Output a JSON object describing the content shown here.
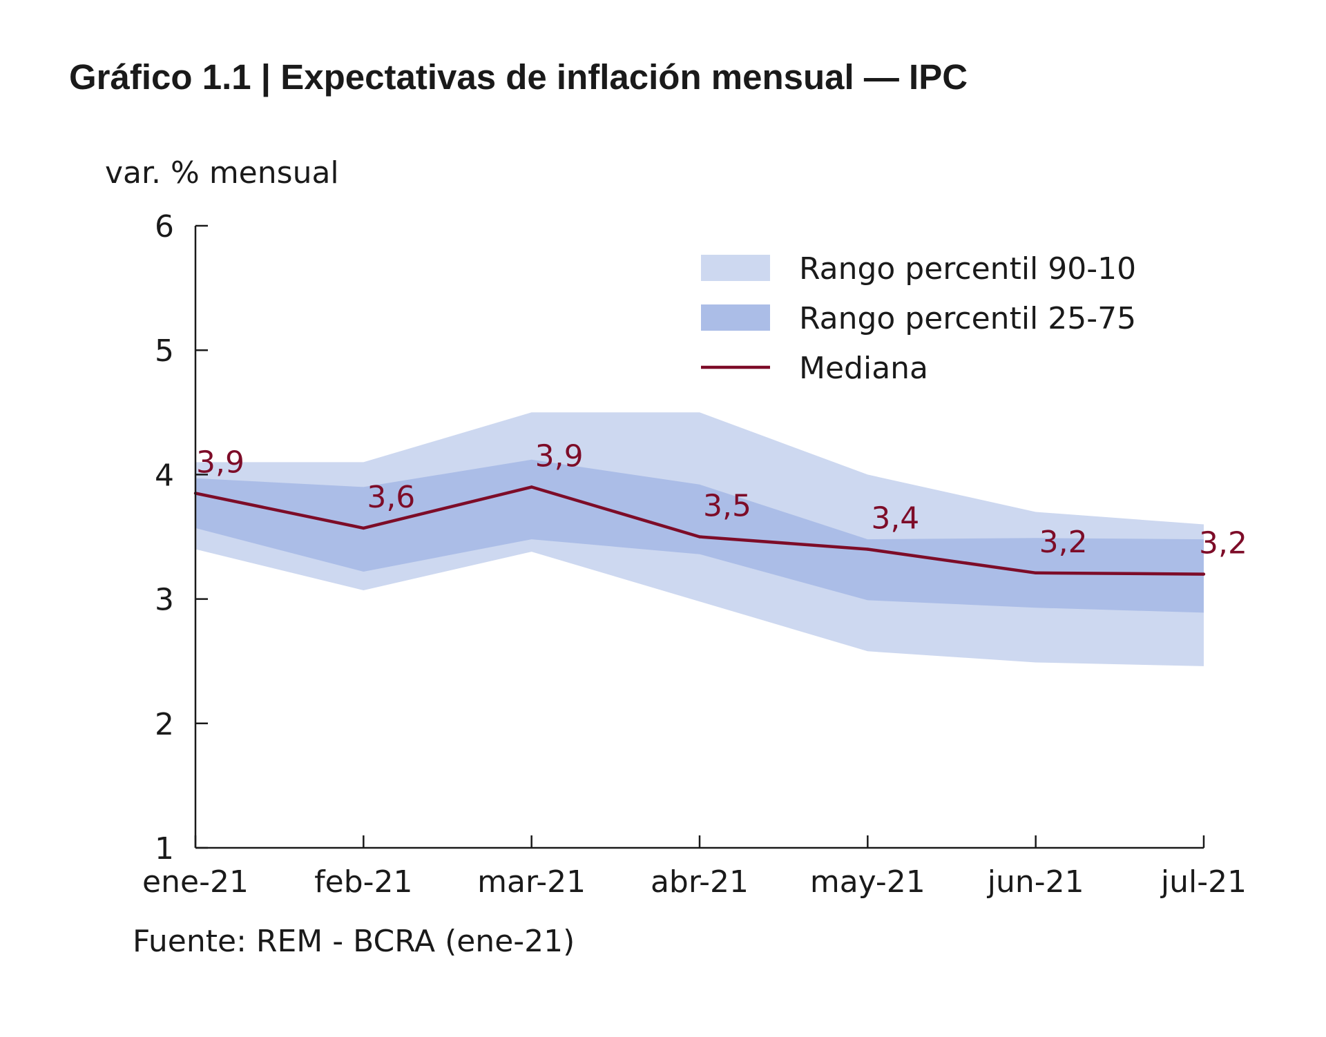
{
  "chart_data": {
    "type": "area",
    "title": "Gráfico 1.1 | Expectativas de inflación mensual — IPC",
    "ylabel": "var. % mensual",
    "xlabel": "",
    "source": "Fuente: REM - BCRA (ene-21)",
    "categories": [
      "ene-21",
      "feb-21",
      "mar-21",
      "abr-21",
      "may-21",
      "jun-21",
      "jul-21"
    ],
    "ylim": [
      1,
      6
    ],
    "yticks": [
      "1",
      "2",
      "3",
      "4",
      "5",
      "6"
    ],
    "grid": false,
    "legend_position": "top-right",
    "series": [
      {
        "name": "Rango percentil 90-10",
        "kind": "band",
        "low": [
          3.4,
          3.07,
          3.38,
          2.98,
          2.58,
          2.49,
          2.46
        ],
        "high": [
          4.1,
          4.1,
          4.5,
          4.5,
          4.0,
          3.7,
          3.6
        ],
        "color": "#cdd8f0"
      },
      {
        "name": "Rango percentil 25-75",
        "kind": "band",
        "low": [
          3.57,
          3.22,
          3.48,
          3.36,
          2.99,
          2.93,
          2.89
        ],
        "high": [
          3.97,
          3.9,
          4.12,
          3.92,
          3.48,
          3.49,
          3.48
        ],
        "color": "#abbde7"
      },
      {
        "name": "Mediana",
        "kind": "line",
        "values": [
          3.85,
          3.57,
          3.9,
          3.5,
          3.4,
          3.21,
          3.2
        ],
        "labels": [
          "3,9",
          "3,6",
          "3,9",
          "3,5",
          "3,4",
          "3,2",
          "3,2"
        ],
        "color": "#7d0c28"
      }
    ]
  }
}
